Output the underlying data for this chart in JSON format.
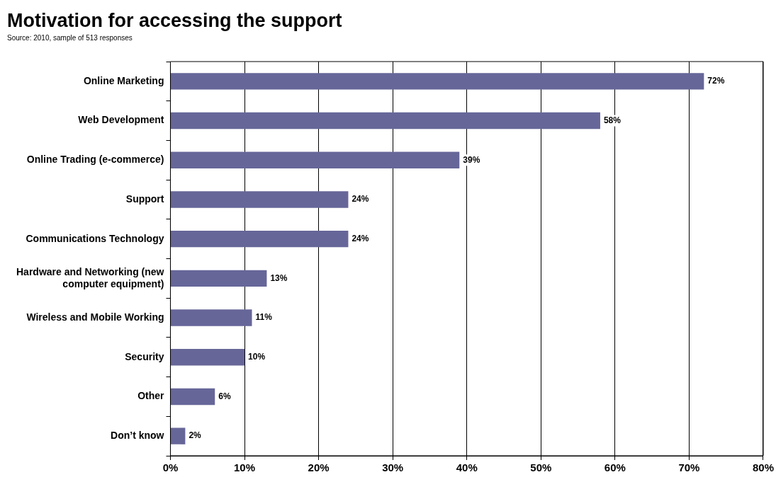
{
  "chart_data": {
    "type": "bar",
    "orientation": "horizontal",
    "title": "Motivation for accessing the support",
    "subtitle": "Source: 2010, sample of 513 responses",
    "categories": [
      "Online Marketing",
      "Web Development",
      "Online Trading (e-commerce)",
      "Support",
      "Communications Technology",
      "Hardware and Networking (new computer equipment)",
      "Wireless and Mobile Working",
      "Security",
      "Other",
      "Don’t know"
    ],
    "values": [
      72,
      58,
      39,
      24,
      24,
      13,
      11,
      10,
      6,
      2
    ],
    "value_labels": [
      "72%",
      "58%",
      "39%",
      "24%",
      "24%",
      "13%",
      "11%",
      "10%",
      "6%",
      "2%"
    ],
    "color": "#666699",
    "xlim": [
      0,
      80
    ],
    "xticks": [
      {
        "value": 0,
        "label": "0%"
      },
      {
        "value": 10,
        "label": "10%"
      },
      {
        "value": 20,
        "label": "20%"
      },
      {
        "value": 30,
        "label": "30%"
      },
      {
        "value": 40,
        "label": "40%"
      },
      {
        "value": 50,
        "label": "50%"
      },
      {
        "value": 60,
        "label": "60%"
      },
      {
        "value": 70,
        "label": "70%"
      },
      {
        "value": 80,
        "label": "80%"
      }
    ],
    "grid": "x",
    "legend": false
  }
}
